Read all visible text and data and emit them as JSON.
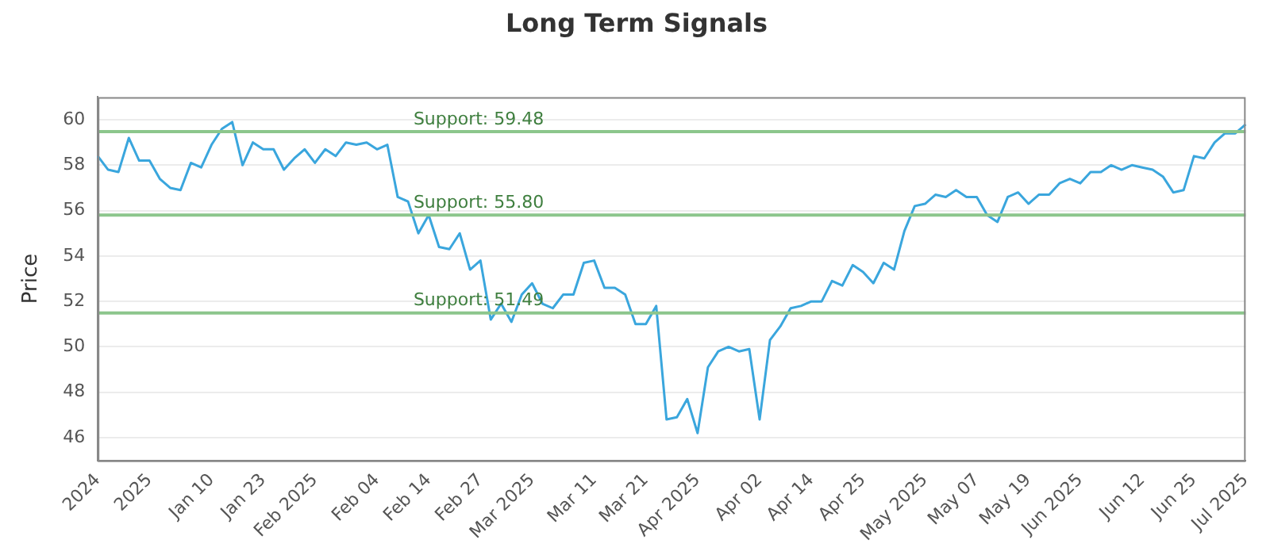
{
  "chart_data": {
    "type": "line",
    "title": "Long Term Signals",
    "ylabel": "Price",
    "categories": [
      "2024",
      null,
      null,
      null,
      null,
      "2025",
      null,
      null,
      null,
      null,
      null,
      "Jan 10",
      null,
      null,
      null,
      null,
      "Jan 23",
      null,
      null,
      null,
      null,
      "Feb 2025",
      null,
      null,
      null,
      null,
      null,
      "Feb 04",
      null,
      null,
      null,
      null,
      "Feb 14",
      null,
      null,
      null,
      null,
      "Feb 27",
      null,
      null,
      null,
      null,
      "Mar 2025",
      null,
      null,
      null,
      null,
      null,
      "Mar 11",
      null,
      null,
      null,
      null,
      "Mar 21",
      null,
      null,
      null,
      null,
      "Apr 2025",
      null,
      null,
      null,
      null,
      null,
      "Apr 02",
      null,
      null,
      null,
      null,
      "Apr 14",
      null,
      null,
      null,
      null,
      "Apr 25",
      null,
      null,
      null,
      null,
      null,
      "May 2025",
      null,
      null,
      null,
      null,
      "May 07",
      null,
      null,
      null,
      null,
      "May 19",
      null,
      null,
      null,
      null,
      "Jun 2025",
      null,
      null,
      null,
      null,
      null,
      "Jun 12",
      null,
      null,
      null,
      null,
      "Jun 25",
      null,
      null,
      null,
      null,
      "Jul 2025"
    ],
    "series": [
      {
        "color": "#3aa6dd",
        "values": [
          58.4,
          57.8,
          57.7,
          59.2,
          58.2,
          58.2,
          57.4,
          57.0,
          56.9,
          58.1,
          57.9,
          58.9,
          59.6,
          59.9,
          58.0,
          59.0,
          58.7,
          58.7,
          57.8,
          58.3,
          58.7,
          58.1,
          58.7,
          58.4,
          59.0,
          58.9,
          59.0,
          58.7,
          58.9,
          56.6,
          56.4,
          55.0,
          55.8,
          54.4,
          54.3,
          55.0,
          53.4,
          53.8,
          51.2,
          51.9,
          51.1,
          52.3,
          52.8,
          51.9,
          51.7,
          52.3,
          52.3,
          53.7,
          53.8,
          52.6,
          52.6,
          52.3,
          51.0,
          51.0,
          51.8,
          46.8,
          46.9,
          47.7,
          46.2,
          49.1,
          49.8,
          50.0,
          49.8,
          49.9,
          46.8,
          50.3,
          50.9,
          51.7,
          51.8,
          52.0,
          52.0,
          52.9,
          52.7,
          53.6,
          53.3,
          52.8,
          53.7,
          53.4,
          55.1,
          56.2,
          56.3,
          56.7,
          56.6,
          56.9,
          56.6,
          56.6,
          55.8,
          55.5,
          56.6,
          56.8,
          56.3,
          56.7,
          56.7,
          57.2,
          57.4,
          57.2,
          57.7,
          57.7,
          58.0,
          57.8,
          58.0,
          57.9,
          57.8,
          57.5,
          56.8,
          56.9,
          58.4,
          58.3,
          59.0,
          59.4,
          59.4,
          59.8
        ]
      }
    ],
    "ylim": [
      45,
      61
    ],
    "yticks": [
      46,
      48,
      50,
      52,
      54,
      56,
      58,
      60
    ],
    "grid": "y",
    "marker": "none",
    "line_style": "solid",
    "ref_lines": [
      {
        "axis": "y",
        "value": 59.48,
        "label": "Support: 59.48",
        "color": "#8cc68c"
      },
      {
        "axis": "y",
        "value": 55.8,
        "label": "Support: 55.80",
        "color": "#8cc68c"
      },
      {
        "axis": "y",
        "value": 51.49,
        "label": "Support: 51.49",
        "color": "#8cc68c"
      }
    ]
  }
}
